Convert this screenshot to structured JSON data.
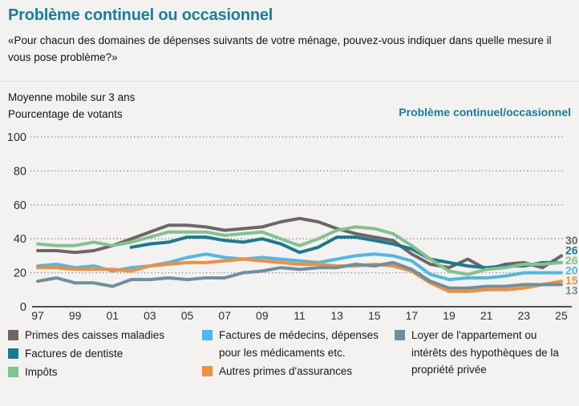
{
  "header": {
    "title": "Problème continuel ou occasionnel",
    "subtitle": "«Pour chacun des domaines de dépenses suivants de votre ménage, pouvez-vous indiquer dans quelle mesure il vous pose problème?»"
  },
  "subheader": {
    "line1": "Moyenne mobile sur 3 ans",
    "line2": "Pourcentage de votants",
    "right_label": "Problème continuel/occasionnel"
  },
  "colors": {
    "background": "#f3f2f1",
    "accent_teal": "#1d7e9a",
    "grid_dots": "#7d7d7d",
    "axis_line": "#4f4f4f",
    "tick_text": "#2e2e2e"
  },
  "chart_data": {
    "type": "line",
    "title": "Problème continuel ou occasionnel",
    "ylabel": "Pourcentage de votants",
    "note": "Moyenne mobile sur 3 ans",
    "ylim": [
      0,
      100
    ],
    "y_ticks": [
      0,
      20,
      40,
      60,
      80,
      100
    ],
    "grid": "horizontal dotted",
    "legend_position": "bottom",
    "x_years": [
      1997,
      1998,
      1999,
      2000,
      2001,
      2002,
      2003,
      2004,
      2005,
      2006,
      2007,
      2008,
      2009,
      2010,
      2011,
      2012,
      2013,
      2014,
      2015,
      2016,
      2017,
      2018,
      2019,
      2020,
      2021,
      2022,
      2023,
      2024,
      2025
    ],
    "x_ticks": [
      {
        "year": 1997,
        "label": "97"
      },
      {
        "year": 1999,
        "label": "99"
      },
      {
        "year": 2001,
        "label": "01"
      },
      {
        "year": 2003,
        "label": "03"
      },
      {
        "year": 2005,
        "label": "05"
      },
      {
        "year": 2007,
        "label": "07"
      },
      {
        "year": 2009,
        "label": "09"
      },
      {
        "year": 2011,
        "label": "11"
      },
      {
        "year": 2013,
        "label": "13"
      },
      {
        "year": 2015,
        "label": "15"
      },
      {
        "year": 2017,
        "label": "17"
      },
      {
        "year": 2019,
        "label": "19"
      },
      {
        "year": 2021,
        "label": "21"
      },
      {
        "year": 2023,
        "label": "23"
      },
      {
        "year": 2025,
        "label": "25"
      }
    ],
    "series": [
      {
        "name": "Primes des caisses maladies",
        "color": "#6f6569",
        "end_label": "30",
        "values": [
          33,
          33,
          32,
          33,
          36,
          40,
          44,
          48,
          48,
          47,
          45,
          46,
          47,
          50,
          52,
          50,
          46,
          43,
          41,
          39,
          31,
          25,
          23,
          28,
          22,
          25,
          26,
          23,
          30
        ]
      },
      {
        "name": "Factures de dentiste",
        "color": "#1b7b8e",
        "end_label": "26",
        "values": [
          null,
          null,
          null,
          null,
          null,
          35,
          37,
          38,
          41,
          41,
          39,
          38,
          40,
          37,
          32,
          35,
          41,
          41,
          39,
          37,
          34,
          28,
          26,
          24,
          23,
          24,
          24,
          26,
          26
        ]
      },
      {
        "name": "Impôts",
        "color": "#83c28e",
        "end_label": "26",
        "values": [
          37,
          36,
          36,
          38,
          36,
          38,
          41,
          44,
          44,
          44,
          42,
          43,
          44,
          40,
          36,
          40,
          45,
          47,
          46,
          43,
          36,
          28,
          21,
          19,
          22,
          23,
          25,
          25,
          26
        ]
      },
      {
        "name": "Factures de médecins, dépenses pour les médicaments etc.",
        "color": "#53b6e3",
        "end_label": "20",
        "values": [
          24,
          25,
          23,
          24,
          21,
          23,
          24,
          26,
          29,
          31,
          29,
          28,
          29,
          28,
          27,
          26,
          28,
          30,
          31,
          30,
          27,
          19,
          16,
          17,
          17,
          18,
          20,
          20,
          20
        ]
      },
      {
        "name": "Autres primes d'assurances",
        "color": "#f0903f",
        "end_label": "15",
        "values": [
          23,
          23,
          22,
          22,
          22,
          21,
          24,
          25,
          26,
          26,
          27,
          28,
          27,
          26,
          25,
          25,
          24,
          24,
          25,
          24,
          21,
          14,
          9,
          9,
          10,
          10,
          11,
          13,
          15
        ]
      },
      {
        "name": "Loyer de l'appartement ou intérêts des hypothèques de la propriété privée",
        "color": "#6f8f9d",
        "end_label": "13",
        "values": [
          15,
          17,
          14,
          14,
          12,
          16,
          16,
          17,
          16,
          17,
          17,
          20,
          21,
          23,
          22,
          23,
          23,
          25,
          24,
          26,
          22,
          15,
          11,
          11,
          12,
          12,
          13,
          13,
          13
        ]
      }
    ]
  },
  "legend": {
    "columns": [
      {
        "items": [
          {
            "label": "Primes des caisses maladies",
            "series": 0
          },
          {
            "label": "Factures de dentiste",
            "series": 1
          },
          {
            "label": "Impôts",
            "series": 2
          }
        ]
      },
      {
        "items": [
          {
            "label": "Factures de médecins, dépenses pour les médicaments etc.",
            "series": 3
          },
          {
            "label": "Autres primes d'assurances",
            "series": 4
          }
        ]
      },
      {
        "items": [
          {
            "label": "Loyer de l'appartement ou intérêts des hypothèques de la propriété privée",
            "series": 5
          }
        ]
      }
    ]
  }
}
